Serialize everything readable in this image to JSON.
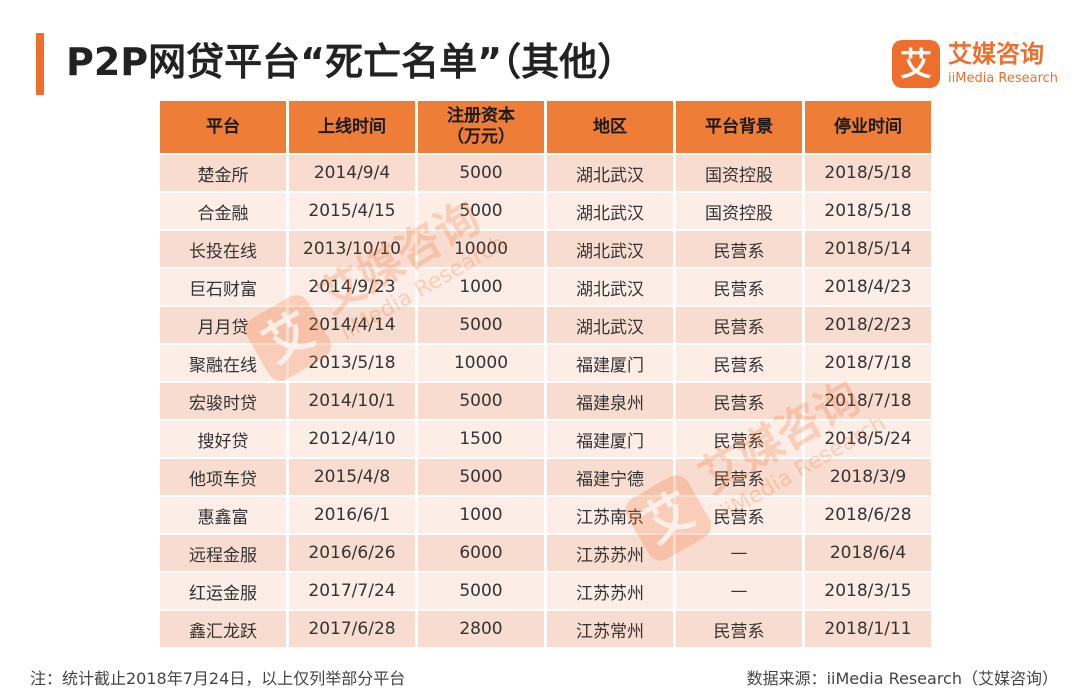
{
  "title": "P2P网贷平台“死亡名单”（其他）",
  "logo": {
    "mark": "艾",
    "cn": "艾媒咨询",
    "en": "iiMedia Research"
  },
  "watermark": {
    "mark": "艾",
    "cn": "艾媒咨询",
    "en": "iiMedia Research"
  },
  "accent_color": "#ee6f2d",
  "table": {
    "headers": [
      "平台",
      "上线时间",
      "注册资本\n（万元）",
      "地区",
      "平台背景",
      "停业时间"
    ],
    "rows": [
      [
        "楚金所",
        "2014/9/4",
        "5000",
        "湖北武汉",
        "国资控股",
        "2018/5/18"
      ],
      [
        "合金融",
        "2015/4/15",
        "5000",
        "湖北武汉",
        "国资控股",
        "2018/5/18"
      ],
      [
        "长投在线",
        "2013/10/10",
        "10000",
        "湖北武汉",
        "民营系",
        "2018/5/14"
      ],
      [
        "巨石财富",
        "2014/9/23",
        "1000",
        "湖北武汉",
        "民营系",
        "2018/4/23"
      ],
      [
        "月月贷",
        "2014/4/14",
        "5000",
        "湖北武汉",
        "民营系",
        "2018/2/23"
      ],
      [
        "聚融在线",
        "2013/5/18",
        "10000",
        "福建厦门",
        "民营系",
        "2018/7/18"
      ],
      [
        "宏骏时贷",
        "2014/10/1",
        "5000",
        "福建泉州",
        "民营系",
        "2018/7/18"
      ],
      [
        "搜好贷",
        "2012/4/10",
        "1500",
        "福建厦门",
        "民营系",
        "2018/5/24"
      ],
      [
        "他项车贷",
        "2015/4/8",
        "5000",
        "福建宁德",
        "民营系",
        "2018/3/9"
      ],
      [
        "惠鑫富",
        "2016/6/1",
        "1000",
        "江苏南京",
        "民营系",
        "2018/6/28"
      ],
      [
        "远程金服",
        "2016/6/26",
        "6000",
        "江苏苏州",
        "—",
        "2018/6/4"
      ],
      [
        "红运金服",
        "2017/7/24",
        "5000",
        "江苏苏州",
        "—",
        "2018/3/15"
      ],
      [
        "鑫汇龙跃",
        "2017/6/28",
        "2800",
        "江苏常州",
        "民营系",
        "2018/1/11"
      ]
    ]
  },
  "footnote": "注：统计截止2018年7月24日，以上仅列举部分平台",
  "source": "数据来源：iiMedia Research（艾媒咨询）"
}
